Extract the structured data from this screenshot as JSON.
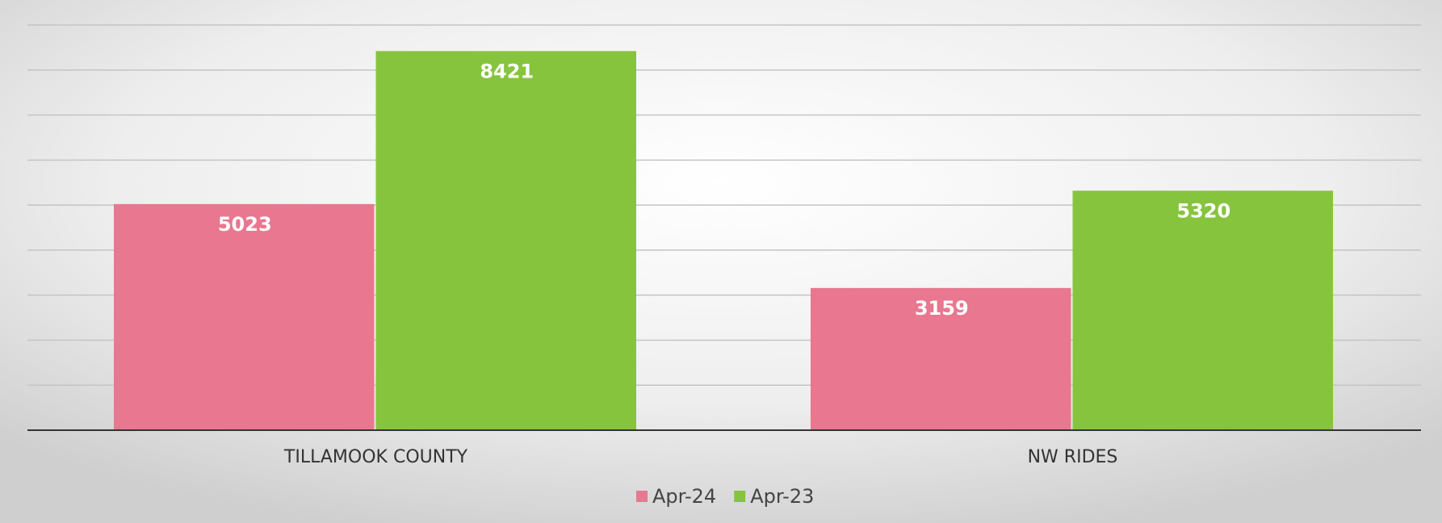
{
  "chart_data": {
    "type": "bar",
    "categories": [
      "TILLAMOOK COUNTY",
      "NW RIDES"
    ],
    "series": [
      {
        "name": "Apr-24",
        "color": "#e8778f",
        "values": [
          5023,
          3159
        ]
      },
      {
        "name": "Apr-23",
        "color": "#86c43e",
        "values": [
          8421,
          5320
        ]
      }
    ],
    "ylim": [
      0,
      9000
    ],
    "yticks": [
      0,
      1000,
      2000,
      3000,
      4000,
      5000,
      6000,
      7000,
      8000,
      9000
    ],
    "grid": true,
    "legend": "bottom"
  }
}
